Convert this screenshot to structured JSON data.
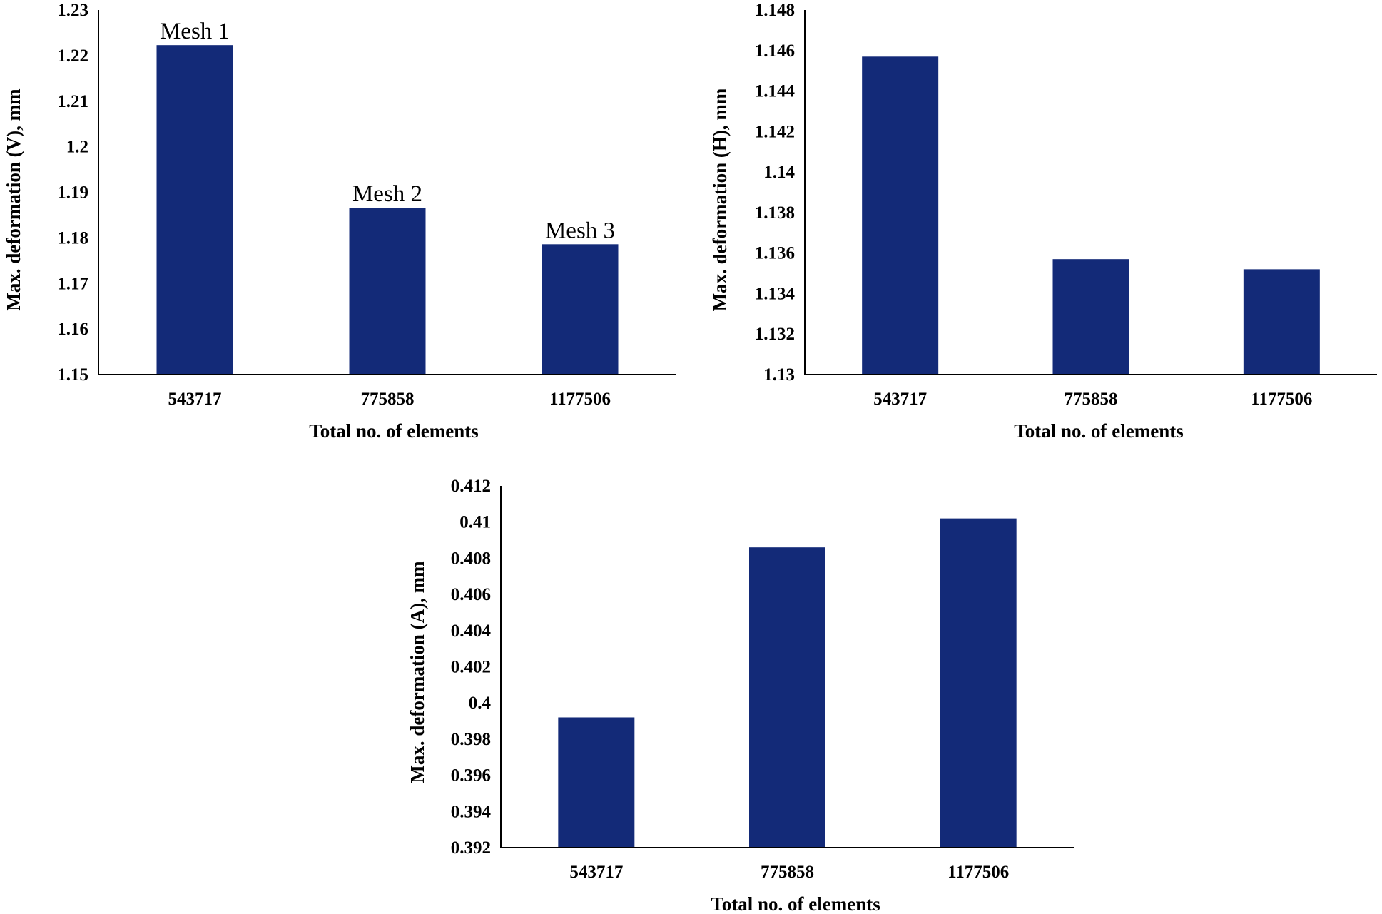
{
  "colors": {
    "bar": "#132a78",
    "axis": "#000000"
  },
  "chart_data": [
    {
      "type": "bar",
      "title": "",
      "xlabel": "Total no. of elements",
      "ylabel": "Max. deformation (V), mm",
      "categories": [
        "543717",
        "775858",
        "1177506"
      ],
      "values": [
        1.2223,
        1.1866,
        1.1786
      ],
      "ylim": [
        1.15,
        1.23
      ],
      "yticks": [
        "1.15",
        "1.16",
        "1.17",
        "1.18",
        "1.19",
        "1.2",
        "1.21",
        "1.22",
        "1.23"
      ],
      "annotations": [
        "Mesh 1",
        "Mesh 2",
        "Mesh 3"
      ]
    },
    {
      "type": "bar",
      "title": "",
      "xlabel": "Total no. of elements",
      "ylabel": "Max. deformation (H), mm",
      "categories": [
        "543717",
        "775858",
        "1177506"
      ],
      "values": [
        1.1457,
        1.1357,
        1.1352
      ],
      "ylim": [
        1.13,
        1.148
      ],
      "yticks": [
        "1.13",
        "1.132",
        "1.134",
        "1.136",
        "1.138",
        "1.14",
        "1.142",
        "1.144",
        "1.146",
        "1.148"
      ],
      "annotations": []
    },
    {
      "type": "bar",
      "title": "",
      "xlabel": "Total no. of elements",
      "ylabel": "Max. deformation (A), mm",
      "categories": [
        "543717",
        "775858",
        "1177506"
      ],
      "values": [
        0.3992,
        0.4086,
        0.4102
      ],
      "ylim": [
        0.392,
        0.412
      ],
      "yticks": [
        "0.392",
        "0.394",
        "0.396",
        "0.398",
        "0.4",
        "0.402",
        "0.404",
        "0.406",
        "0.408",
        "0.41",
        "0.412"
      ],
      "annotations": []
    }
  ]
}
